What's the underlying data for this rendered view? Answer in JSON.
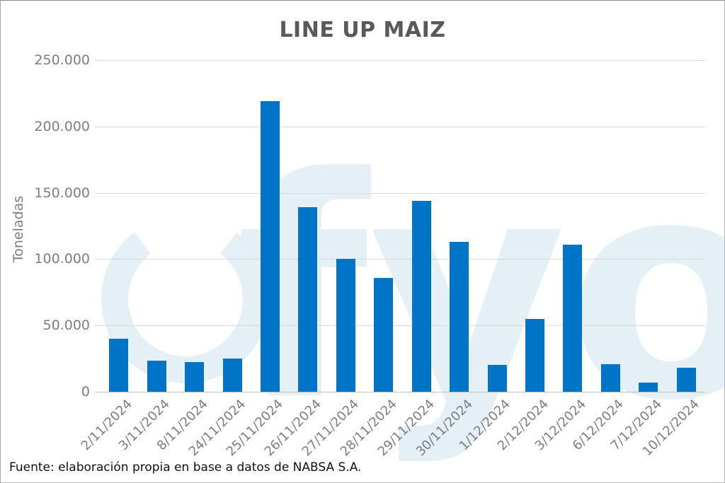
{
  "colors": {
    "bar": "#0074C6",
    "title": "#595959",
    "axis_text": "#7d7d7d",
    "gridline": "#d9d9d9",
    "baseline": "#bfbfbf",
    "watermark": "#E4EFF6"
  },
  "watermark": {
    "text": "fyo"
  },
  "chart_data": {
    "type": "bar",
    "title": "LINE UP MAIZ",
    "xlabel": "",
    "ylabel": "Toneladas",
    "categories": [
      "2/11/2024",
      "3/11/2024",
      "8/11/2024",
      "24/11/2024",
      "25/11/2024",
      "26/11/2024",
      "27/11/2024",
      "28/11/2024",
      "29/11/2024",
      "30/11/2024",
      "1/12/2024",
      "2/12/2024",
      "3/12/2024",
      "6/12/2024",
      "7/12/2024",
      "10/12/2024"
    ],
    "values": [
      40000,
      23500,
      22500,
      25000,
      219000,
      139000,
      100000,
      86000,
      144000,
      113000,
      20000,
      55000,
      111000,
      21000,
      7000,
      18000
    ],
    "ylim": [
      0,
      250000
    ],
    "ytick_step": 50000,
    "ytick_labels": [
      "0",
      "50.000",
      "100.000",
      "150.000",
      "200.000",
      "250.000"
    ],
    "grid": true,
    "legend": false,
    "bar_color": "#0074C6",
    "source_note": "Fuente: elaboración propia en base a datos de NABSA S.A."
  }
}
